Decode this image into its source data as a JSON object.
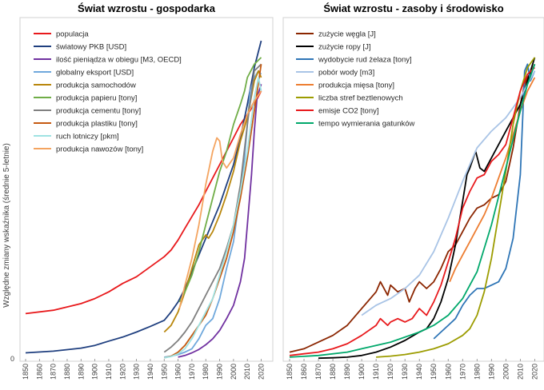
{
  "ylabel": "Względne zmiany wskaźnika (średnie 5-letnie)",
  "chart_data": [
    {
      "type": "line",
      "title": "Świat wzrostu - gospodarka",
      "xlabel": "",
      "xlim": [
        1850,
        2022
      ],
      "ylim": [
        0,
        1.0
      ],
      "xticks": [
        "1850",
        "1860",
        "1870",
        "1880",
        "1890",
        "1900",
        "1910",
        "1920",
        "1930",
        "1940",
        "1950",
        "1960",
        "1970",
        "1980",
        "1990",
        "2000",
        "2010",
        "2020"
      ],
      "yticks": [
        "0"
      ],
      "series": [
        {
          "name": "populacja",
          "color": "#e8191c",
          "x": [
            1850,
            1870,
            1890,
            1900,
            1910,
            1920,
            1930,
            1940,
            1950,
            1955,
            1960,
            1965,
            1970,
            1975,
            1980,
            1985,
            1990,
            1995,
            2000,
            2005,
            2010,
            2015,
            2020
          ],
          "y": [
            0.135,
            0.145,
            0.165,
            0.18,
            0.2,
            0.225,
            0.245,
            0.275,
            0.305,
            0.325,
            0.355,
            0.39,
            0.425,
            0.46,
            0.5,
            0.54,
            0.58,
            0.62,
            0.66,
            0.7,
            0.73,
            0.76,
            0.8
          ]
        },
        {
          "name": "światowy PKB [USD]",
          "color": "#1f3f7f",
          "x": [
            1850,
            1870,
            1890,
            1900,
            1910,
            1920,
            1930,
            1940,
            1950,
            1955,
            1960,
            1965,
            1970,
            1975,
            1980,
            1985,
            1990,
            1995,
            2000,
            2005,
            2010,
            2015,
            2020
          ],
          "y": [
            0.018,
            0.023,
            0.032,
            0.04,
            0.053,
            0.065,
            0.08,
            0.097,
            0.115,
            0.14,
            0.17,
            0.21,
            0.26,
            0.31,
            0.36,
            0.41,
            0.46,
            0.52,
            0.58,
            0.66,
            0.76,
            0.87,
            0.95
          ]
        },
        {
          "name": "ilość pieniądza w obiegu [M3, OECD]",
          "color": "#7030a0",
          "x": [
            1960,
            1965,
            1970,
            1975,
            1980,
            1985,
            1990,
            1995,
            2000,
            2005,
            2008,
            2010,
            2013,
            2015,
            2017,
            2020
          ],
          "y": [
            0.005,
            0.01,
            0.018,
            0.028,
            0.042,
            0.06,
            0.085,
            0.12,
            0.16,
            0.23,
            0.3,
            0.4,
            0.55,
            0.68,
            0.78,
            0.82
          ]
        },
        {
          "name": "globalny eksport [USD]",
          "color": "#6fa8dc",
          "x": [
            1950,
            1955,
            1960,
            1965,
            1970,
            1975,
            1980,
            1985,
            1990,
            1995,
            2000,
            2005,
            2008,
            2010,
            2012,
            2015,
            2018,
            2020
          ],
          "y": [
            0.005,
            0.008,
            0.013,
            0.02,
            0.03,
            0.06,
            0.1,
            0.12,
            0.18,
            0.27,
            0.35,
            0.5,
            0.6,
            0.7,
            0.8,
            0.84,
            0.86,
            0.85
          ]
        },
        {
          "name": "produkcja samochodów",
          "color": "#b8860b",
          "x": [
            1950,
            1955,
            1960,
            1965,
            1970,
            1975,
            1980,
            1982,
            1985,
            1990,
            1995,
            2000,
            2005,
            2010,
            2015,
            2018,
            2020
          ],
          "y": [
            0.08,
            0.1,
            0.14,
            0.2,
            0.27,
            0.34,
            0.37,
            0.36,
            0.38,
            0.43,
            0.49,
            0.56,
            0.65,
            0.72,
            0.83,
            0.86,
            0.84
          ]
        },
        {
          "name": "produkcja papieru [tony]",
          "color": "#70ad47",
          "x": [
            1961,
            1965,
            1970,
            1975,
            1980,
            1985,
            1990,
            1995,
            2000,
            2005,
            2008,
            2010,
            2015,
            2020
          ],
          "y": [
            0.17,
            0.2,
            0.25,
            0.32,
            0.4,
            0.48,
            0.56,
            0.62,
            0.7,
            0.76,
            0.8,
            0.84,
            0.88,
            0.9
          ]
        },
        {
          "name": "produkcja cementu [tony]",
          "color": "#7f7f7f",
          "x": [
            1950,
            1955,
            1960,
            1965,
            1970,
            1975,
            1980,
            1985,
            1990,
            1995,
            2000,
            2005,
            2010,
            2015,
            2020
          ],
          "y": [
            0.02,
            0.035,
            0.055,
            0.08,
            0.11,
            0.15,
            0.19,
            0.23,
            0.27,
            0.33,
            0.4,
            0.52,
            0.7,
            0.86,
            0.88
          ]
        },
        {
          "name": "produkcja plastiku [tony]",
          "color": "#c55a11",
          "x": [
            1950,
            1955,
            1960,
            1965,
            1970,
            1975,
            1980,
            1985,
            1990,
            1995,
            2000,
            2005,
            2010,
            2015,
            2020
          ],
          "y": [
            0.003,
            0.008,
            0.02,
            0.04,
            0.07,
            0.1,
            0.13,
            0.18,
            0.24,
            0.3,
            0.38,
            0.48,
            0.6,
            0.74,
            0.88
          ]
        },
        {
          "name": "ruch lotniczy [pkm]",
          "color": "#9fe3e3",
          "x": [
            1950,
            1955,
            1960,
            1965,
            1970,
            1975,
            1980,
            1985,
            1990,
            1995,
            2000,
            2005,
            2010,
            2015,
            2018,
            2020
          ],
          "y": [
            0.003,
            0.007,
            0.015,
            0.03,
            0.06,
            0.1,
            0.14,
            0.18,
            0.25,
            0.32,
            0.4,
            0.5,
            0.62,
            0.78,
            0.84,
            0.8
          ]
        },
        {
          "name": "produkcja nawozów [tony]",
          "color": "#f4a460",
          "x": [
            1961,
            1965,
            1970,
            1975,
            1980,
            1985,
            1988,
            1990,
            1992,
            1995,
            2000,
            2005,
            2010,
            2015,
            2020
          ],
          "y": [
            0.15,
            0.22,
            0.3,
            0.4,
            0.52,
            0.62,
            0.66,
            0.65,
            0.59,
            0.57,
            0.6,
            0.67,
            0.73,
            0.77,
            0.8
          ]
        }
      ]
    },
    {
      "type": "line",
      "title": "Świat wzrostu - zasoby i środowisko",
      "xlabel": "",
      "xlim": [
        1850,
        2022
      ],
      "ylim": [
        0,
        1.0
      ],
      "xticks": [
        "1850",
        "1860",
        "1870",
        "1880",
        "1890",
        "1900",
        "1910",
        "1920",
        "1930",
        "1940",
        "1950",
        "1960",
        "1970",
        "1980",
        "1990",
        "2000",
        "2010",
        "2020"
      ],
      "yticks": [],
      "series": [
        {
          "name": "zużycie węgla [J]",
          "color": "#8b2500",
          "x": [
            1850,
            1860,
            1870,
            1880,
            1890,
            1900,
            1910,
            1913,
            1918,
            1920,
            1925,
            1930,
            1933,
            1937,
            1940,
            1945,
            1950,
            1955,
            1960,
            1965,
            1970,
            1975,
            1980,
            1985,
            1990,
            1995,
            2000,
            2005,
            2010,
            2013,
            2015,
            2018,
            2020
          ],
          "y": [
            0.02,
            0.03,
            0.05,
            0.07,
            0.1,
            0.15,
            0.2,
            0.23,
            0.19,
            0.22,
            0.2,
            0.21,
            0.17,
            0.21,
            0.23,
            0.21,
            0.23,
            0.27,
            0.32,
            0.34,
            0.38,
            0.42,
            0.45,
            0.46,
            0.48,
            0.49,
            0.53,
            0.63,
            0.76,
            0.82,
            0.84,
            0.86,
            0.88
          ]
        },
        {
          "name": "zużycie ropy [J]",
          "color": "#000000",
          "x": [
            1870,
            1880,
            1890,
            1900,
            1910,
            1920,
            1930,
            1940,
            1945,
            1950,
            1955,
            1960,
            1965,
            1970,
            1973,
            1975,
            1979,
            1982,
            1985,
            1990,
            1995,
            2000,
            2005,
            2010,
            2015,
            2020
          ],
          "y": [
            0.002,
            0.003,
            0.005,
            0.01,
            0.02,
            0.035,
            0.055,
            0.08,
            0.09,
            0.12,
            0.17,
            0.24,
            0.34,
            0.47,
            0.55,
            0.57,
            0.62,
            0.57,
            0.56,
            0.6,
            0.64,
            0.68,
            0.72,
            0.76,
            0.83,
            0.9
          ]
        },
        {
          "name": "wydobycie rud żelaza [tony]",
          "color": "#2e75b6",
          "x": [
            1950,
            1955,
            1960,
            1965,
            1970,
            1975,
            1980,
            1985,
            1990,
            1995,
            2000,
            2005,
            2010,
            2013,
            2015,
            2017,
            2020
          ],
          "y": [
            0.06,
            0.08,
            0.1,
            0.12,
            0.16,
            0.19,
            0.21,
            0.21,
            0.22,
            0.23,
            0.27,
            0.36,
            0.55,
            0.86,
            0.88,
            0.83,
            0.86
          ]
        },
        {
          "name": "pobór wody [m3]",
          "color": "#a9c4e6",
          "x": [
            1900,
            1910,
            1920,
            1930,
            1940,
            1950,
            1960,
            1970,
            1980,
            1990,
            2000,
            2010,
            2015,
            2020
          ],
          "y": [
            0.13,
            0.16,
            0.18,
            0.21,
            0.25,
            0.32,
            0.42,
            0.53,
            0.63,
            0.68,
            0.72,
            0.78,
            0.82,
            0.86
          ]
        },
        {
          "name": "produkcja mięsa [tony]",
          "color": "#ed7d31",
          "x": [
            1961,
            1965,
            1970,
            1975,
            1980,
            1985,
            1990,
            1995,
            2000,
            2005,
            2010,
            2015,
            2020
          ],
          "y": [
            0.23,
            0.27,
            0.31,
            0.35,
            0.39,
            0.43,
            0.48,
            0.54,
            0.6,
            0.67,
            0.74,
            0.8,
            0.84
          ]
        },
        {
          "name": "liczba stref beztlenowych",
          "color": "#9c9c00",
          "x": [
            1910,
            1920,
            1930,
            1940,
            1950,
            1960,
            1970,
            1975,
            1980,
            1985,
            1990,
            1995,
            2000,
            2005,
            2010,
            2015,
            2020
          ],
          "y": [
            0.005,
            0.008,
            0.013,
            0.02,
            0.03,
            0.045,
            0.07,
            0.09,
            0.13,
            0.2,
            0.3,
            0.43,
            0.56,
            0.7,
            0.8,
            0.87,
            0.9
          ]
        },
        {
          "name": "emisje CO2 [tony]",
          "color": "#e8191c",
          "x": [
            1850,
            1860,
            1870,
            1880,
            1890,
            1900,
            1910,
            1913,
            1918,
            1920,
            1925,
            1930,
            1935,
            1940,
            1945,
            1950,
            1955,
            1960,
            1965,
            1970,
            1975,
            1980,
            1985,
            1990,
            1995,
            2000,
            2005,
            2010,
            2015,
            2020
          ],
          "y": [
            0.01,
            0.015,
            0.02,
            0.03,
            0.045,
            0.07,
            0.1,
            0.12,
            0.1,
            0.11,
            0.12,
            0.11,
            0.12,
            0.15,
            0.13,
            0.17,
            0.22,
            0.29,
            0.36,
            0.45,
            0.5,
            0.54,
            0.55,
            0.59,
            0.61,
            0.64,
            0.72,
            0.8,
            0.85,
            0.87
          ]
        },
        {
          "name": "tempo wymierania gatunków",
          "color": "#00a86b",
          "x": [
            1850,
            1870,
            1890,
            1900,
            1920,
            1940,
            1950,
            1960,
            1970,
            1980,
            1990,
            2000,
            2010,
            2015,
            2020
          ],
          "y": [
            0.005,
            0.01,
            0.02,
            0.03,
            0.05,
            0.08,
            0.1,
            0.13,
            0.18,
            0.26,
            0.4,
            0.57,
            0.74,
            0.82,
            0.88
          ]
        }
      ]
    }
  ]
}
